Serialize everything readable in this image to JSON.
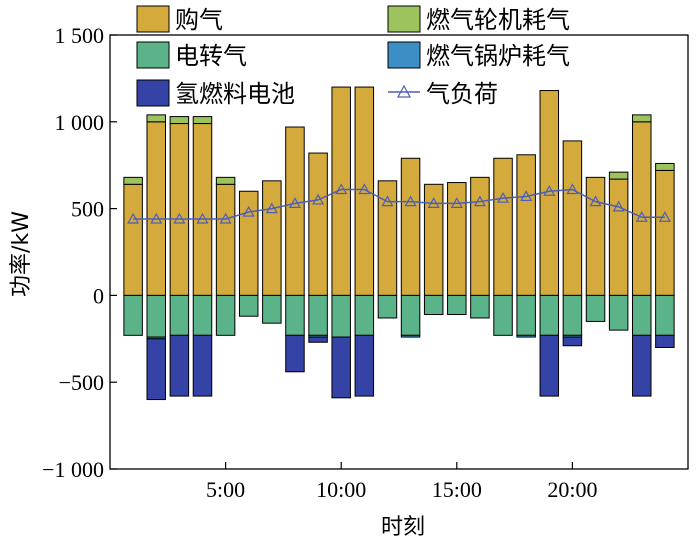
{
  "chart_data": {
    "type": "bar",
    "stacked": true,
    "xlabel": "时刻",
    "ylabel": "功率/kW",
    "ylim": [
      -1000,
      1500
    ],
    "yticks": [
      -1000,
      -500,
      0,
      500,
      1000,
      1500
    ],
    "ytick_labels": [
      "−1 000",
      "−500",
      "0",
      "500",
      "1 000",
      "1 500"
    ],
    "x": [
      1,
      2,
      3,
      4,
      5,
      6,
      7,
      8,
      9,
      10,
      11,
      12,
      13,
      14,
      15,
      16,
      17,
      18,
      19,
      20,
      21,
      22,
      23,
      24
    ],
    "xlim": [
      0,
      25
    ],
    "xticks": [
      5,
      10,
      15,
      20
    ],
    "xtick_labels": [
      "5:00",
      "10:00",
      "15:00",
      "20:00"
    ],
    "grid": false,
    "legend_position": "top",
    "series": [
      {
        "name": "购气",
        "color": "#D4AA3C",
        "values": [
          640,
          1000,
          990,
          990,
          640,
          600,
          660,
          970,
          820,
          1200,
          1200,
          660,
          790,
          640,
          650,
          680,
          790,
          810,
          1180,
          890,
          680,
          670,
          1000,
          720
        ]
      },
      {
        "name": "燃气轮机耗气",
        "color": "#9DC35F",
        "values": [
          40,
          40,
          40,
          40,
          40,
          0,
          0,
          0,
          0,
          0,
          0,
          0,
          0,
          0,
          0,
          0,
          0,
          0,
          0,
          0,
          0,
          40,
          40,
          40
        ]
      },
      {
        "name": "电转气",
        "color": "#5BB38A",
        "values": [
          -230,
          -240,
          -230,
          -230,
          -230,
          -120,
          -160,
          -230,
          -230,
          -240,
          -230,
          -130,
          -230,
          -110,
          -110,
          -130,
          -230,
          -230,
          -230,
          -230,
          -150,
          -200,
          -230,
          -230
        ]
      },
      {
        "name": "燃气锅炉耗气",
        "color": "#3B8FC4",
        "values": [
          0,
          -10,
          0,
          0,
          0,
          0,
          0,
          0,
          -10,
          0,
          0,
          0,
          -10,
          0,
          0,
          0,
          0,
          -10,
          0,
          -10,
          0,
          0,
          0,
          0
        ]
      },
      {
        "name": "氢燃料电池",
        "color": "#3542A6",
        "values": [
          0,
          -350,
          -350,
          -350,
          0,
          0,
          0,
          -210,
          -30,
          -350,
          -350,
          0,
          0,
          0,
          0,
          0,
          0,
          0,
          -350,
          -50,
          0,
          0,
          -350,
          -70
        ]
      },
      {
        "name": "气负荷",
        "color": "#4D5FB5",
        "type": "line",
        "values": [
          440,
          440,
          440,
          440,
          440,
          480,
          500,
          530,
          550,
          610,
          610,
          540,
          540,
          530,
          530,
          540,
          560,
          570,
          600,
          610,
          540,
          510,
          450,
          450
        ]
      }
    ]
  }
}
